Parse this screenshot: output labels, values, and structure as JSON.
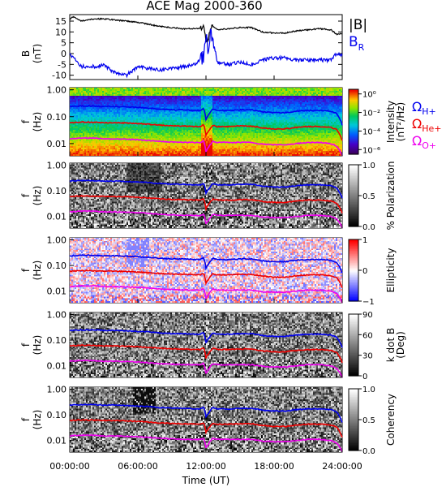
{
  "chart_data": {
    "type": "heatmap",
    "title": "ACE Mag 2000-360",
    "xlabel": "Time (UT)",
    "x_ticks": [
      "00:00:00",
      "06:00:00",
      "12:00:00",
      "18:00:00",
      "24:00:00"
    ],
    "xlim_hours": [
      0,
      24
    ],
    "grid": false,
    "field_panel": {
      "type": "line",
      "ylabel": "B",
      "yunit": "(nT)",
      "ylim": [
        -12,
        18
      ],
      "y_ticks": [
        "15",
        "10",
        "5",
        "0",
        "-5",
        "-10"
      ],
      "y_tick_values": [
        15,
        10,
        5,
        0,
        -5,
        -10
      ],
      "series": [
        {
          "name": "|B|",
          "color": "#000000",
          "x": [
            0,
            0.3,
            1,
            2,
            3,
            4,
            5,
            6,
            7,
            8,
            9,
            10,
            11,
            11.5,
            11.8,
            12,
            12.2,
            12.6,
            13,
            14,
            15,
            16,
            17,
            18,
            19,
            20,
            21,
            22,
            23,
            23.5,
            24
          ],
          "values": [
            16,
            17,
            15,
            16,
            16,
            15.5,
            15,
            14.5,
            13.5,
            12.5,
            12,
            11.5,
            11.5,
            11.5,
            13,
            5,
            7,
            13,
            11,
            11.5,
            12,
            12,
            10,
            9.5,
            9.5,
            10.5,
            11,
            11.5,
            11,
            9,
            9
          ]
        },
        {
          "name": "B",
          "subscript": "R",
          "color": "#0000ee",
          "x": [
            0,
            0.5,
            1,
            2,
            3,
            4,
            5,
            6,
            7,
            8,
            9,
            10,
            11,
            11.8,
            12,
            12.2,
            12.5,
            13,
            14,
            15,
            16,
            17,
            18,
            19,
            20,
            21,
            22,
            23,
            23.5,
            24
          ],
          "values": [
            0,
            -3,
            -6,
            -6,
            -5.5,
            -9,
            -10,
            -6,
            -7,
            -7.5,
            -7,
            -6,
            -5,
            -2,
            9,
            2,
            10,
            -4,
            -5,
            -4,
            -5,
            -3,
            -2,
            -2,
            -3,
            -3,
            -3,
            -3,
            0,
            -1
          ]
        }
      ]
    },
    "spectral_panels": [
      {
        "name": "intensity",
        "ylabel": "f",
        "yunit": "(Hz)",
        "cb_label": "Intensity",
        "cb_unit": "(nT²/Hz)",
        "colormap": "rainbow",
        "cb_ticks": [
          "10⁰",
          "10⁻²",
          "10⁻⁴",
          "10⁻⁶"
        ],
        "cb_tick_values": [
          0,
          -2,
          -4,
          -6
        ],
        "cb_range": [
          -6.5,
          0.5
        ]
      },
      {
        "name": "polarization",
        "ylabel": "f",
        "yunit": "(Hz)",
        "cb_label": "% Polarization",
        "cb_unit": "",
        "colormap": "gray",
        "cb_ticks": [
          "1.0",
          "0.5",
          "0.0"
        ],
        "cb_tick_values": [
          1,
          0.5,
          0
        ],
        "cb_range": [
          0,
          1
        ]
      },
      {
        "name": "ellipticity",
        "ylabel": "f",
        "yunit": "(Hz)",
        "cb_label": "Ellipticity",
        "cb_unit": "",
        "colormap": "bwr",
        "cb_ticks": [
          "1",
          "0",
          "−1"
        ],
        "cb_tick_values": [
          1,
          0,
          -1
        ],
        "cb_range": [
          -1,
          1
        ]
      },
      {
        "name": "kdotb",
        "ylabel": "f",
        "yunit": "(Hz)",
        "cb_label": "k dot B",
        "cb_unit": "(Deg)",
        "colormap": "gray",
        "cb_ticks": [
          "90",
          "60",
          "30",
          "0"
        ],
        "cb_tick_values": [
          90,
          60,
          30,
          0
        ],
        "cb_range": [
          0,
          90
        ]
      },
      {
        "name": "coherency",
        "ylabel": "f",
        "yunit": "(Hz)",
        "cb_label": "Coherency",
        "cb_unit": "",
        "colormap": "gray",
        "cb_ticks": [
          "1.0",
          "0.5",
          "0.0"
        ],
        "cb_tick_values": [
          1,
          0.5,
          0
        ],
        "cb_range": [
          0,
          1
        ]
      }
    ],
    "freq_axis": {
      "scale": "log",
      "ylim": [
        0.0035,
        1.2
      ],
      "y_ticks": [
        "1.00",
        "0.10",
        "0.01"
      ],
      "y_tick_values": [
        1,
        0.1,
        0.01
      ]
    },
    "gyro_legend": [
      {
        "symbol": "Ω",
        "subscript": "H+",
        "color": "#0000ee"
      },
      {
        "symbol": "Ω",
        "subscript": "He+",
        "color": "#ee0000"
      },
      {
        "symbol": "Ω",
        "subscript": "O+",
        "color": "#ee00ee"
      }
    ],
    "gyro_series": {
      "x": [
        0,
        1,
        2,
        3,
        4,
        5,
        6,
        7,
        8,
        9,
        10,
        11,
        11.5,
        11.8,
        12,
        12.2,
        12.6,
        13,
        14,
        15,
        16,
        17,
        18,
        19,
        20,
        21,
        22,
        23,
        23.5,
        24
      ],
      "H+": [
        0.24,
        0.25,
        0.25,
        0.24,
        0.24,
        0.23,
        0.22,
        0.21,
        0.19,
        0.18,
        0.18,
        0.17,
        0.17,
        0.2,
        0.08,
        0.11,
        0.19,
        0.17,
        0.17,
        0.18,
        0.18,
        0.15,
        0.14,
        0.14,
        0.16,
        0.17,
        0.17,
        0.16,
        0.13,
        0.05
      ],
      "He+": [
        0.06,
        0.063,
        0.062,
        0.06,
        0.06,
        0.058,
        0.055,
        0.052,
        0.048,
        0.046,
        0.045,
        0.043,
        0.043,
        0.05,
        0.02,
        0.028,
        0.048,
        0.043,
        0.043,
        0.045,
        0.045,
        0.038,
        0.035,
        0.035,
        0.04,
        0.043,
        0.043,
        0.04,
        0.033,
        0.013
      ],
      "O+": [
        0.015,
        0.016,
        0.016,
        0.015,
        0.015,
        0.0145,
        0.014,
        0.013,
        0.012,
        0.0115,
        0.011,
        0.011,
        0.011,
        0.0125,
        0.005,
        0.007,
        0.012,
        0.011,
        0.011,
        0.011,
        0.011,
        0.0095,
        0.009,
        0.009,
        0.01,
        0.011,
        0.011,
        0.01,
        0.008,
        0.0035
      ]
    }
  }
}
